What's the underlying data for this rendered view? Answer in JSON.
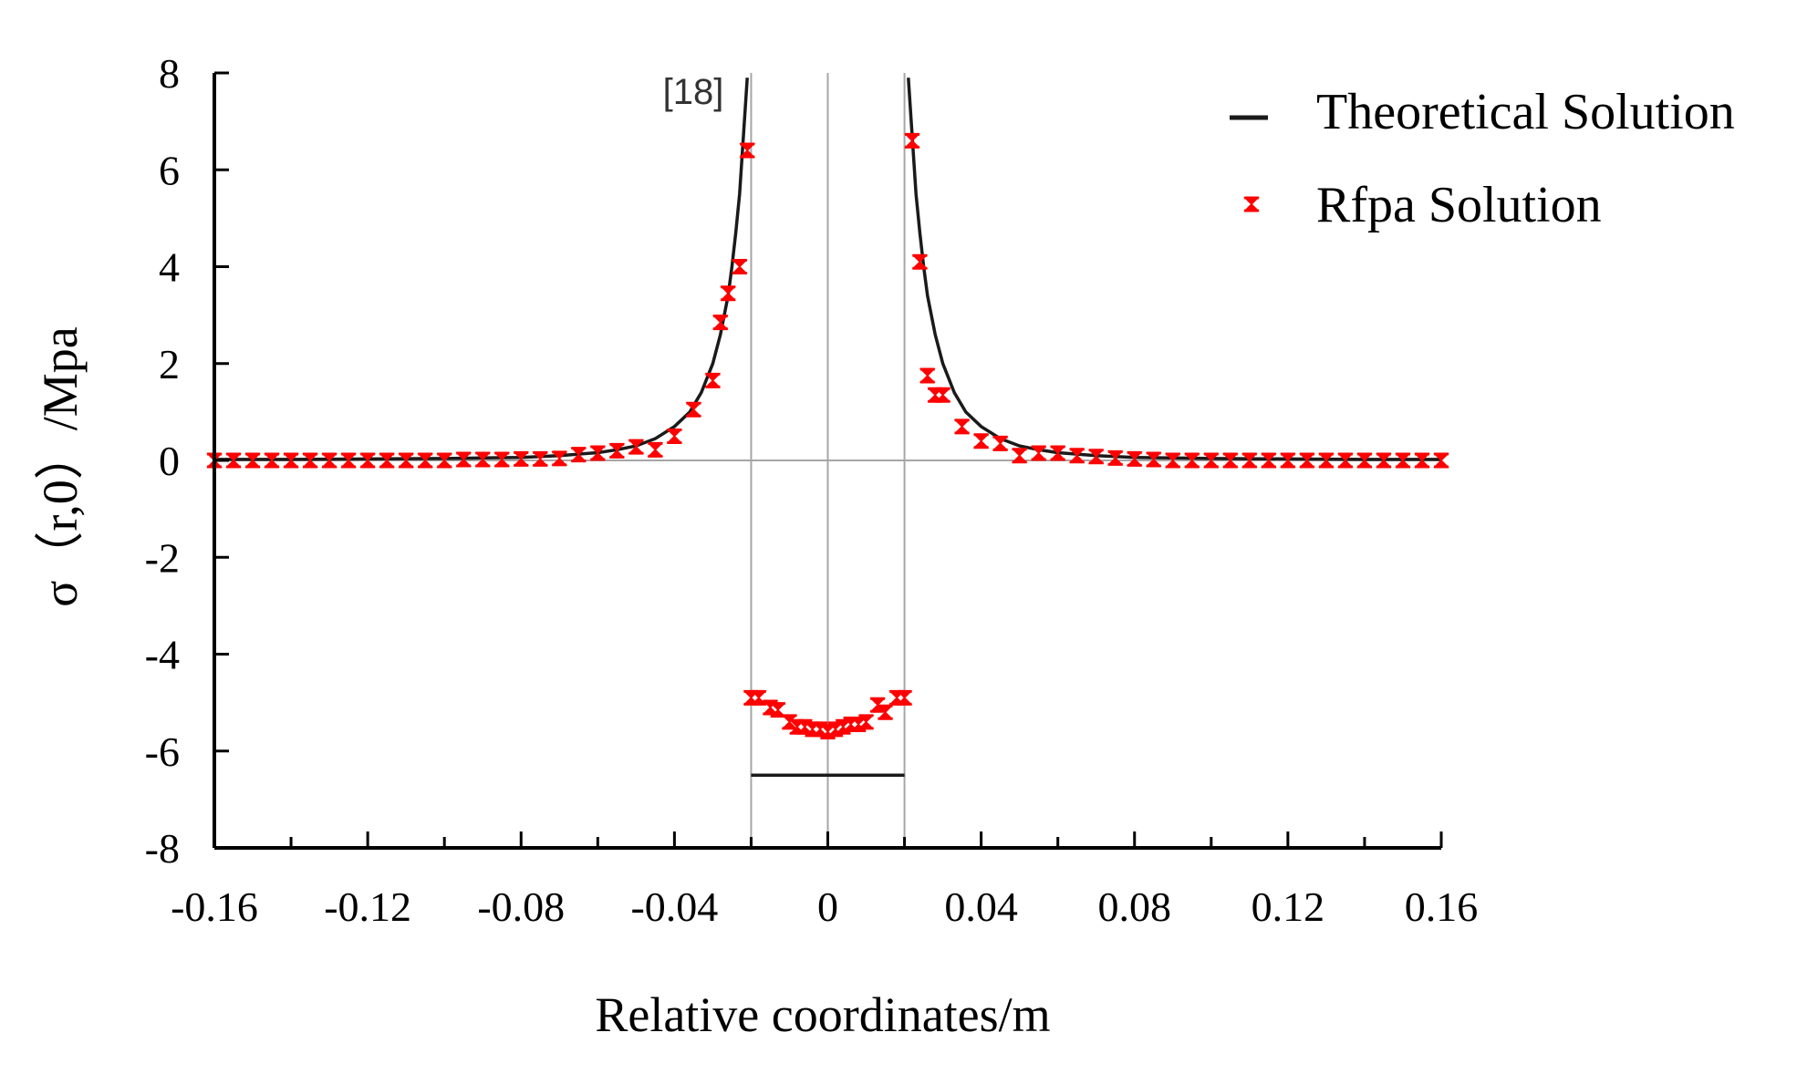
{
  "chart_data": {
    "type": "line",
    "title": "",
    "xlabel": "Relative coordinates/m",
    "ylabel": "σ（r,0）/Mpa",
    "xlim": [
      -0.16,
      0.16
    ],
    "ylim": [
      -8,
      8
    ],
    "xticks": [
      "-0.16",
      "-0.12",
      "-0.08",
      "-0.04",
      "0",
      "0.04",
      "0.08",
      "0.12",
      "0.16"
    ],
    "xtick_values": [
      -0.16,
      -0.12,
      -0.08,
      -0.04,
      0,
      0.04,
      0.08,
      0.12,
      0.16
    ],
    "yticks": [
      "8",
      "6",
      "4",
      "2",
      "0",
      "-2",
      "-4",
      "-6",
      "-8"
    ],
    "ytick_values": [
      8,
      6,
      4,
      2,
      0,
      -2,
      -4,
      -6,
      -8
    ],
    "annotation": "[18]",
    "reference_lines": {
      "vertical_x": [
        -0.02,
        0,
        0.02
      ],
      "horizontal_y": 0
    },
    "legend_position": "top-right",
    "colors": {
      "theory": "#1a1a1a",
      "rfpa": "#ff0000",
      "reference": "#a6a6a6",
      "axis": "#000000"
    },
    "series": [
      {
        "name": "Theoretical Solution",
        "kind": "line",
        "segments": [
          {
            "x": [
              -0.16,
              -0.14,
              -0.12,
              -0.1,
              -0.09,
              -0.08,
              -0.07,
              -0.06,
              -0.055,
              -0.05,
              -0.045,
              -0.04,
              -0.036,
              -0.033,
              -0.03,
              -0.028,
              -0.026,
              -0.025,
              -0.024,
              -0.023,
              -0.0225,
              -0.022,
              -0.0215,
              -0.021
            ],
            "y": [
              0.02,
              0.02,
              0.03,
              0.04,
              0.05,
              0.06,
              0.1,
              0.16,
              0.22,
              0.3,
              0.45,
              0.7,
              1.0,
              1.4,
              2.0,
              2.6,
              3.4,
              4.0,
              4.7,
              5.5,
              6.1,
              6.7,
              7.3,
              7.9
            ]
          },
          {
            "x": [
              0.021,
              0.0215,
              0.022,
              0.0225,
              0.023,
              0.024,
              0.025,
              0.026,
              0.028,
              0.03,
              0.033,
              0.036,
              0.04,
              0.045,
              0.05,
              0.055,
              0.06,
              0.07,
              0.08,
              0.09,
              0.1,
              0.12,
              0.14,
              0.16
            ],
            "y": [
              7.9,
              7.3,
              6.7,
              6.1,
              5.5,
              4.7,
              4.0,
              3.4,
              2.6,
              2.0,
              1.4,
              1.0,
              0.7,
              0.45,
              0.3,
              0.22,
              0.16,
              0.1,
              0.06,
              0.05,
              0.04,
              0.03,
              0.02,
              0.02
            ]
          },
          {
            "x": [
              -0.02,
              0.02
            ],
            "y": [
              -6.5,
              -6.5
            ]
          }
        ]
      },
      {
        "name": "Rfpa Solution",
        "kind": "scatter",
        "x": [
          -0.16,
          -0.155,
          -0.15,
          -0.145,
          -0.14,
          -0.135,
          -0.13,
          -0.125,
          -0.12,
          -0.115,
          -0.11,
          -0.105,
          -0.1,
          -0.095,
          -0.09,
          -0.085,
          -0.08,
          -0.075,
          -0.07,
          -0.065,
          -0.06,
          -0.055,
          -0.05,
          -0.045,
          -0.04,
          -0.035,
          -0.03,
          -0.028,
          -0.026,
          -0.023,
          -0.021,
          -0.02,
          -0.018,
          -0.015,
          -0.013,
          -0.01,
          -0.008,
          -0.006,
          -0.004,
          -0.002,
          0,
          0.002,
          0.004,
          0.006,
          0.008,
          0.01,
          0.013,
          0.015,
          0.018,
          0.02,
          0.022,
          0.024,
          0.026,
          0.028,
          0.03,
          0.035,
          0.04,
          0.045,
          0.05,
          0.055,
          0.06,
          0.065,
          0.07,
          0.075,
          0.08,
          0.085,
          0.09,
          0.095,
          0.1,
          0.105,
          0.11,
          0.115,
          0.12,
          0.125,
          0.13,
          0.135,
          0.14,
          0.145,
          0.15,
          0.155,
          0.16
        ],
        "y": [
          0.0,
          0.0,
          0.0,
          0.0,
          0.0,
          0.0,
          0.0,
          0.0,
          0.0,
          0.0,
          0.0,
          0.0,
          0.0,
          0.02,
          0.02,
          0.02,
          0.03,
          0.03,
          0.04,
          0.12,
          0.15,
          0.2,
          0.28,
          0.22,
          0.5,
          1.05,
          1.65,
          2.85,
          3.45,
          4.0,
          6.4,
          -4.9,
          -4.9,
          -5.1,
          -5.15,
          -5.4,
          -5.5,
          -5.5,
          -5.55,
          -5.55,
          -5.6,
          -5.55,
          -5.5,
          -5.45,
          -5.45,
          -5.4,
          -5.05,
          -5.2,
          -4.9,
          -4.9,
          6.6,
          4.1,
          1.75,
          1.35,
          1.35,
          0.7,
          0.4,
          0.35,
          0.1,
          0.15,
          0.15,
          0.1,
          0.08,
          0.05,
          0.03,
          0.02,
          0.0,
          0.0,
          0.0,
          0.0,
          0.0,
          0.0,
          0.0,
          0.0,
          0.0,
          0.0,
          0.0,
          0.0,
          0.0,
          0.0,
          0.0
        ]
      }
    ]
  }
}
